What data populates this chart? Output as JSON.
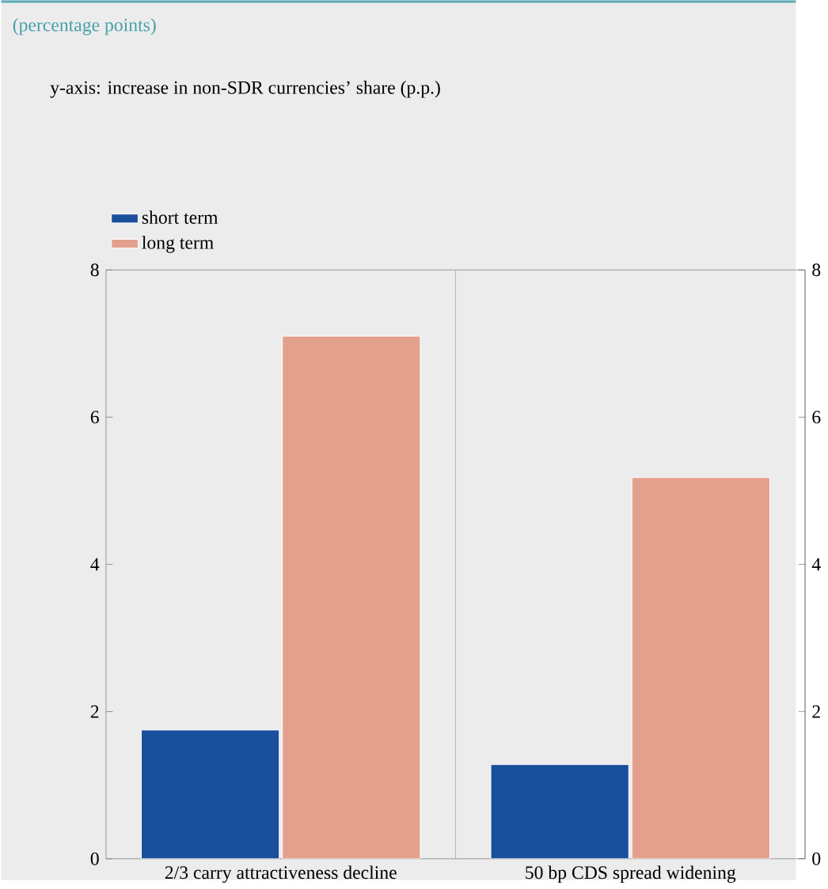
{
  "chart_data": {
    "type": "bar",
    "subtitle": "(percentage points)",
    "annotations": [
      "y-axis: increase in non-SDR currencies’ share (p.p.)"
    ],
    "categories": [
      "2/3 carry attractiveness decline",
      "50 bp CDS spread widening"
    ],
    "series": [
      {
        "name": "short term",
        "color": "#1a4f9c",
        "values": [
          1.75,
          1.28
        ]
      },
      {
        "name": "long term",
        "color": "#e3a08c",
        "values": [
          7.1,
          5.18
        ]
      }
    ],
    "ylim": [
      0,
      8
    ],
    "yticks": [
      0,
      2,
      4,
      6,
      8
    ],
    "y2lim": [
      0,
      8
    ],
    "y2ticks": [
      0,
      2,
      4,
      6,
      8
    ],
    "legend": "top left",
    "grid": false
  }
}
